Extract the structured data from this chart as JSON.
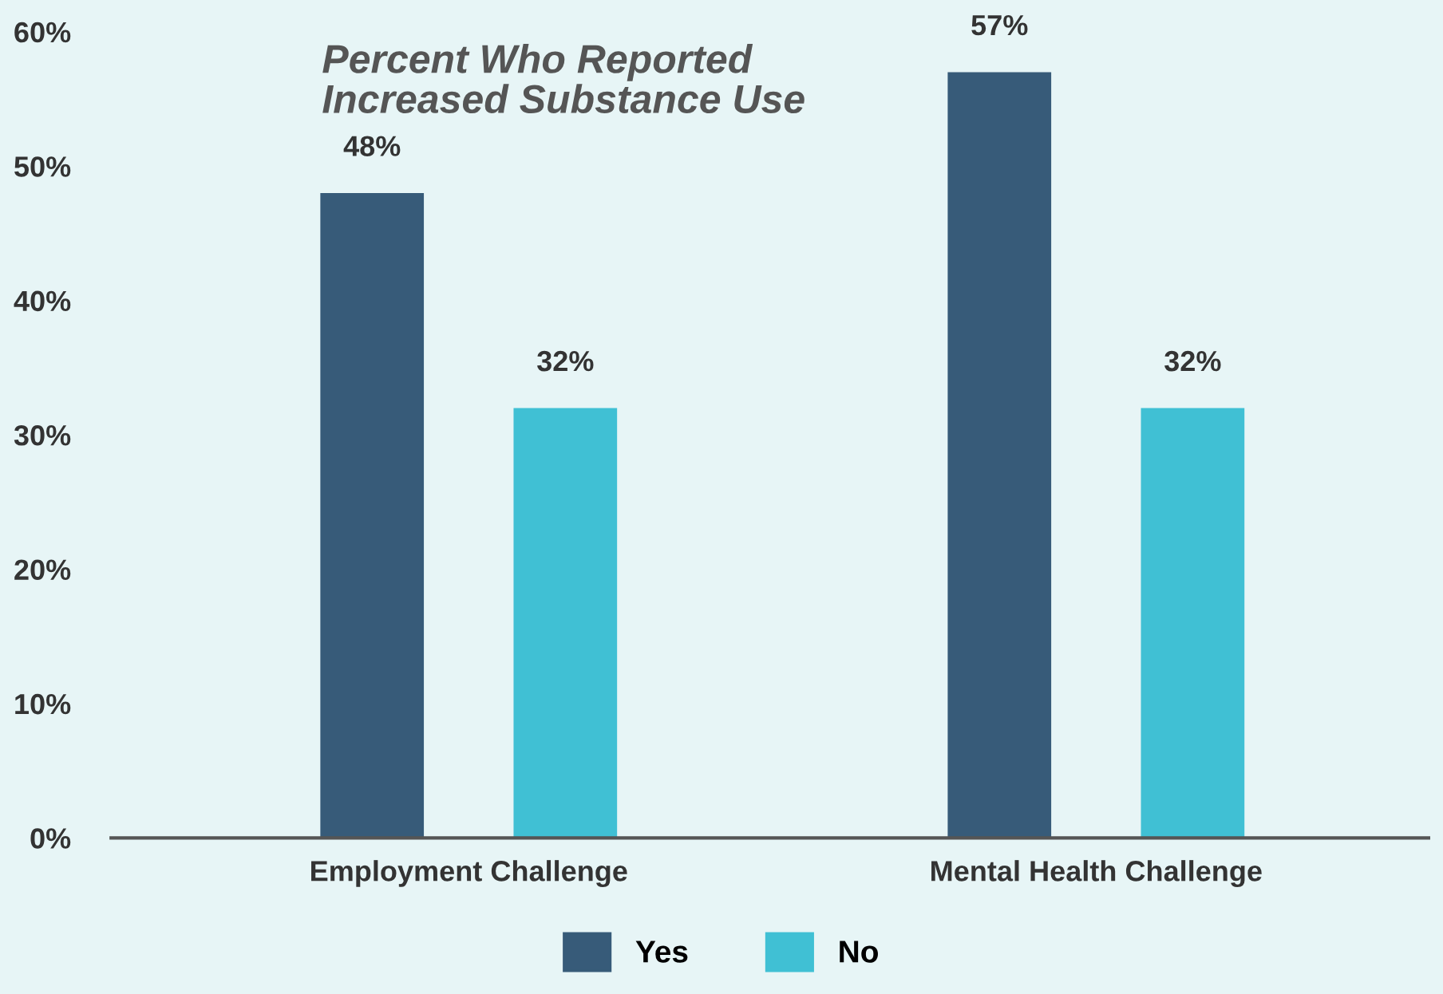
{
  "chart_data": {
    "type": "bar",
    "title": "Percent Who Reported\nIncreased Substance Use",
    "categories": [
      "Employment Challenge",
      "Mental Health Challenge"
    ],
    "series": [
      {
        "name": "Yes",
        "color": "#375b79",
        "values": [
          48,
          57
        ],
        "value_labels": [
          "48%",
          "57%"
        ]
      },
      {
        "name": "No",
        "color": "#40c0d4",
        "values": [
          32,
          32
        ],
        "value_labels": [
          "32%",
          "32%"
        ]
      }
    ],
    "ylim": [
      0,
      60
    ],
    "yticks": [
      {
        "value": 0,
        "label": "0%"
      },
      {
        "value": 10,
        "label": "10%"
      },
      {
        "value": 20,
        "label": "20%"
      },
      {
        "value": 30,
        "label": "30%"
      },
      {
        "value": 40,
        "label": "40%"
      },
      {
        "value": 50,
        "label": "50%"
      },
      {
        "value": 60,
        "label": "60%"
      }
    ],
    "grid": false,
    "legend": "bottom"
  }
}
